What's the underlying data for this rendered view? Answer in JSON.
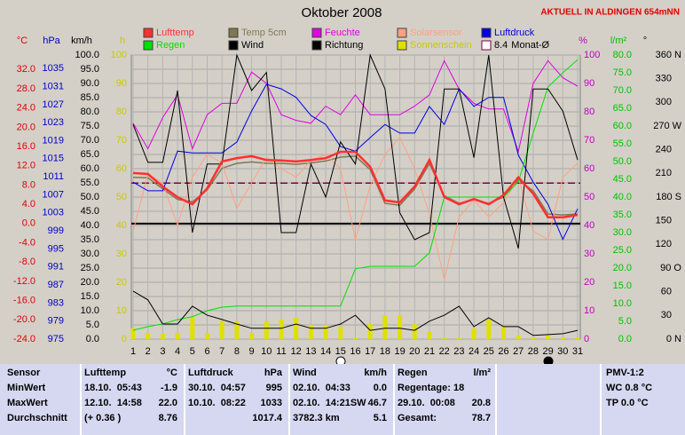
{
  "chart_data": {
    "type": "line",
    "title": "Oktober 2008",
    "subtitle": "AKTUELL IN ALDINGEN 654mNN",
    "categories": [
      1,
      2,
      3,
      4,
      5,
      6,
      7,
      8,
      9,
      10,
      11,
      12,
      13,
      14,
      15,
      16,
      17,
      18,
      19,
      20,
      21,
      22,
      23,
      24,
      25,
      26,
      27,
      28,
      29,
      30,
      31
    ],
    "grid": true,
    "axes": {
      "temp": {
        "label": "°C",
        "color": "#e00000",
        "lim": [
          -24,
          35
        ],
        "ticks": [
          {
            "value": -24,
            "label": "-24.0"
          },
          {
            "value": -20,
            "label": "-20.0"
          },
          {
            "value": -16,
            "label": "-16.0"
          },
          {
            "value": -12,
            "label": "-12.0"
          },
          {
            "value": -8,
            "label": "-8.0"
          },
          {
            "value": -4,
            "label": "-4.0"
          },
          {
            "value": 0,
            "label": "0.0"
          },
          {
            "value": 4,
            "label": "4.0"
          },
          {
            "value": 8,
            "label": "8.0"
          },
          {
            "value": 12,
            "label": "12.0"
          },
          {
            "value": 16,
            "label": "16.0"
          },
          {
            "value": 20,
            "label": "20.0"
          },
          {
            "value": 24,
            "label": "24.0"
          },
          {
            "value": 28,
            "label": "28.0"
          },
          {
            "value": 32,
            "label": "32.0"
          }
        ]
      },
      "pressure": {
        "label": "hPa",
        "color": "#0000c0",
        "lim": [
          975,
          1038
        ],
        "ticks": [
          975,
          979,
          983,
          987,
          991,
          995,
          999,
          1003,
          1007,
          1011,
          1015,
          1019,
          1023,
          1027,
          1031,
          1035
        ]
      },
      "speed": {
        "label": "km/h",
        "color": "#000000",
        "lim": [
          0,
          100
        ],
        "ticks": [
          {
            "value": 0,
            "label": "0.0"
          },
          {
            "value": 5,
            "label": "5.0"
          },
          {
            "value": 10,
            "label": "10.0"
          },
          {
            "value": 15,
            "label": "15.0"
          },
          {
            "value": 20,
            "label": "20.0"
          },
          {
            "value": 25,
            "label": "25.0"
          },
          {
            "value": 30,
            "label": "30.0"
          },
          {
            "value": 35,
            "label": "35.0"
          },
          {
            "value": 40,
            "label": "40.0"
          },
          {
            "value": 45,
            "label": "45.0"
          },
          {
            "value": 50,
            "label": "50.0"
          },
          {
            "value": 55,
            "label": "55.0"
          },
          {
            "value": 60,
            "label": "60.0"
          },
          {
            "value": 65,
            "label": "65.0"
          },
          {
            "value": 70,
            "label": "70.0"
          },
          {
            "value": 75,
            "label": "75.0"
          },
          {
            "value": 80,
            "label": "80.0"
          },
          {
            "value": 85,
            "label": "85.0"
          },
          {
            "value": 90,
            "label": "90.0"
          },
          {
            "value": 95,
            "label": "95.0"
          },
          {
            "value": 100,
            "label": "100.0"
          }
        ]
      },
      "hours": {
        "label": "h",
        "color": "#c8c800",
        "lim": [
          0,
          100
        ],
        "ticks": [
          0,
          10,
          20,
          30,
          40,
          50,
          60,
          70,
          80,
          90,
          100
        ]
      },
      "humidity": {
        "label": "%",
        "color": "#c000c0",
        "lim": [
          0,
          100
        ],
        "ticks": [
          0,
          10,
          20,
          30,
          40,
          50,
          60,
          70,
          80,
          90,
          100
        ]
      },
      "rain": {
        "label": "l/m²",
        "color": "#00c000",
        "lim": [
          0,
          80
        ],
        "ticks": [
          {
            "value": 0,
            "label": "0.0"
          },
          {
            "value": 5,
            "label": "5.0"
          },
          {
            "value": 10,
            "label": "10.0"
          },
          {
            "value": 15,
            "label": "15.0"
          },
          {
            "value": 20,
            "label": "20.0"
          },
          {
            "value": 25,
            "label": "25.0"
          },
          {
            "value": 30,
            "label": "30.0"
          },
          {
            "value": 35,
            "label": "35.0"
          },
          {
            "value": 40,
            "label": "40.0"
          },
          {
            "value": 45,
            "label": "45.0"
          },
          {
            "value": 50,
            "label": "50.0"
          },
          {
            "value": 55,
            "label": "55.0"
          },
          {
            "value": 60,
            "label": "60.0"
          },
          {
            "value": 65,
            "label": "65.0"
          },
          {
            "value": 70,
            "label": "70.0"
          },
          {
            "value": 75,
            "label": "75.0"
          },
          {
            "value": 80,
            "label": "80.0"
          }
        ]
      },
      "dir": {
        "label": "°",
        "color": "#000000",
        "lim": [
          0,
          360
        ],
        "ticks": [
          {
            "value": 0,
            "label": "0 N"
          },
          30,
          60,
          {
            "value": 90,
            "label": "90 O"
          },
          120,
          150,
          {
            "value": 180,
            "label": "180 S"
          },
          210,
          240,
          {
            "value": 270,
            "label": "270 W"
          },
          300,
          330,
          {
            "value": 360,
            "label": "360 N"
          }
        ]
      }
    },
    "series": [
      {
        "name": "Sonnenschein",
        "type": "bar",
        "axis": "hours",
        "color": "#e0e000",
        "values": [
          3.8,
          2.2,
          1.9,
          2.2,
          7.5,
          2.2,
          6.3,
          6.3,
          2.2,
          6.3,
          6.9,
          7.5,
          5.0,
          5.0,
          4.4,
          0.3,
          5.3,
          8.4,
          8.4,
          5.3,
          2.5,
          0.3,
          0.3,
          3.8,
          6.9,
          4.4,
          1.3,
          0.6,
          1.3,
          0.6,
          0.6
        ]
      },
      {
        "name": "Lufttemp",
        "type": "line",
        "axis": "temp",
        "color": "#ff3030",
        "values": [
          10.5,
          10.3,
          7.7,
          5.5,
          4.0,
          7.3,
          12.9,
          13.6,
          14.0,
          13.2,
          13.1,
          12.9,
          13.2,
          13.6,
          14.9,
          14.9,
          11.8,
          4.8,
          4.4,
          7.7,
          13.2,
          5.5,
          4.0,
          5.1,
          4.0,
          5.9,
          9.6,
          6.2,
          1.3,
          1.3,
          1.8
        ]
      },
      {
        "name": "Temp 5cm",
        "type": "line",
        "axis": "temp",
        "color": "#807850",
        "values": [
          9.6,
          9.5,
          7.2,
          5.0,
          4.5,
          7.0,
          11.5,
          12.5,
          12.8,
          12.5,
          12.5,
          12.3,
          12.6,
          13.0,
          13.8,
          14.0,
          11.2,
          4.2,
          3.8,
          7.2,
          12.5,
          5.8,
          4.2,
          5.0,
          4.2,
          5.5,
          9.0,
          6.8,
          2.0,
          1.8,
          2.0
        ]
      },
      {
        "name": "Feuchte",
        "type": "line",
        "axis": "humidity",
        "color": "#e000e0",
        "values": [
          76,
          67,
          78,
          86,
          67,
          79,
          83,
          83,
          94,
          90,
          79,
          77,
          76,
          82,
          79,
          86,
          79,
          79,
          79,
          82,
          86,
          98,
          88,
          83,
          81,
          81,
          66,
          90,
          98,
          92,
          89
        ]
      },
      {
        "name": "Solarsensor",
        "type": "line",
        "axis": "speed",
        "color": "#ffa080",
        "values": [
          38,
          58,
          55,
          40,
          57,
          65,
          62,
          46,
          55,
          64,
          60,
          57,
          63,
          65,
          60,
          35,
          54,
          65,
          71,
          60,
          44,
          21,
          43,
          49,
          43,
          48,
          57,
          38,
          35,
          57,
          62
        ]
      },
      {
        "name": "Luftdruck",
        "type": "line",
        "axis": "pressure",
        "color": "#0000e0",
        "values": [
          1009.8,
          1007.9,
          1007.9,
          1016.7,
          1016.3,
          1016.3,
          1016.3,
          1018.7,
          1025.6,
          1031.5,
          1030.5,
          1028.6,
          1024.6,
          1022.6,
          1017.7,
          1016.7,
          1019.7,
          1022.6,
          1020.7,
          1020.7,
          1026.6,
          1022.6,
          1030.5,
          1026.6,
          1028.6,
          1028.6,
          1015.8,
          1009.8,
          1004.9,
          997.1,
          1003.9
        ]
      },
      {
        "name": "Regen",
        "type": "line",
        "axis": "rain",
        "color": "#00e000",
        "values": [
          2.5,
          3.5,
          4.3,
          5.5,
          6.3,
          8.0,
          9.0,
          9.3,
          9.3,
          9.3,
          9.3,
          9.3,
          9.3,
          9.3,
          9.3,
          19.8,
          20.5,
          20.5,
          20.5,
          20.5,
          24.3,
          40.0,
          40.0,
          40.0,
          40.0,
          40.0,
          44.3,
          58.0,
          71.0,
          75.0,
          78.7
        ]
      },
      {
        "name": "Wind",
        "type": "line",
        "axis": "speed",
        "color": "#000000",
        "values": [
          16.9,
          13.8,
          5.3,
          5.3,
          11.6,
          8.4,
          6.9,
          5.3,
          3.8,
          3.8,
          3.8,
          5.3,
          3.8,
          3.8,
          5.3,
          8.4,
          3.1,
          3.8,
          3.8,
          3.1,
          6.3,
          8.4,
          11.6,
          4.4,
          7.5,
          4.4,
          4.4,
          1.3,
          1.6,
          1.9,
          3.1
        ]
      },
      {
        "name": "Richtung",
        "type": "line",
        "axis": "dir",
        "color": "#000000",
        "values": [
          272,
          224,
          224,
          315,
          135,
          222,
          222,
          360,
          315,
          338,
          135,
          135,
          222,
          180,
          250,
          222,
          360,
          317,
          160,
          126,
          135,
          317,
          317,
          230,
          360,
          180,
          115,
          317,
          317,
          289,
          227
        ]
      }
    ],
    "legend_order": [
      "Lufttemp",
      "Temp 5cm",
      "Feuchte",
      "Solarsensor",
      "Luftdruck",
      "Regen",
      "Wind",
      "Richtung",
      "Sonnenschein"
    ],
    "reference_lines": [
      {
        "name": "Monat-Ø",
        "value": 8.4,
        "axis": "temp",
        "color": "#800040"
      }
    ]
  },
  "table": {
    "rows": [
      {
        "label": "Sensor",
        "t_note": "Lufttemp",
        "t_val": "°C",
        "p_note": "Luftdruck",
        "p_val": "hPa",
        "w_note": "Wind",
        "w_val": "km/h",
        "r_note": "Regen",
        "r_val": "l/m²",
        "pmv": "PMV-1:2"
      },
      {
        "label": "MinWert",
        "t_note": "18.10.  05:43",
        "t_val": "-1.9",
        "p_note": "30.10.  04:57",
        "p_val": "995",
        "w_note": "02.10.  04:33",
        "w_val": "0.0",
        "r_note": "Regentage: 18",
        "pmv": "WC 0.8 °C"
      },
      {
        "label": "MaxWert",
        "t_note": "12.10.  14:58",
        "t_val": "22.0",
        "p_note": "10.10.  08:22",
        "p_val": "1033",
        "w_note": "02.10.  14:21SW",
        "w_val": "46.7",
        "r_note": "29.10.  00:08",
        "r_val": "20.8",
        "pmv": "TP 0.0 °C"
      },
      {
        "label": "Durchschnitt",
        "t_note": "(+ 0.36 )",
        "t_val": "8.76",
        "p_val": "1017.4",
        "w_note": "3782.3 km",
        "w_val": "5.1",
        "r_note": "Gesamt:",
        "r_val": "78.7"
      }
    ]
  }
}
